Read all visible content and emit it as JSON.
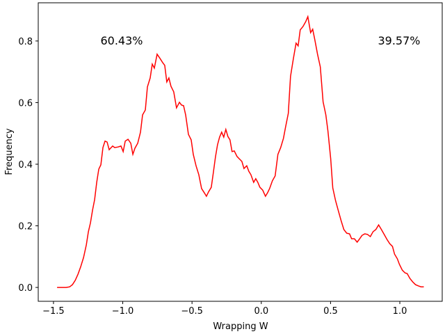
{
  "chart_data": {
    "type": "line",
    "xlabel": "Wrapping W",
    "ylabel": "Frequency",
    "annotations": [
      "60.43%",
      "39.57%"
    ],
    "xlim": [
      -1.61,
      1.306
    ],
    "ylim": [
      -0.045,
      0.924
    ],
    "xticks": [
      {
        "value": -1.5,
        "label": "−1.5"
      },
      {
        "value": -1.0,
        "label": "−1.0"
      },
      {
        "value": -0.5,
        "label": "−0.5"
      },
      {
        "value": 0,
        "label": "0.0"
      },
      0.5,
      {
        "value": 1.0,
        "label": "1.0"
      }
    ],
    "yticks": [
      {
        "value": 0,
        "label": "0.0"
      },
      0.2,
      0.4,
      0.6,
      0.8
    ],
    "color": "#ff0000",
    "x": [
      -1.474,
      -1.434,
      -1.409,
      -1.383,
      -1.363,
      -1.343,
      -1.323,
      -1.303,
      -1.283,
      -1.263,
      -1.248,
      -1.233,
      -1.218,
      -1.203,
      -1.188,
      -1.173,
      -1.158,
      -1.143,
      -1.128,
      -1.113,
      -1.098,
      -1.073,
      -1.058,
      -1.033,
      -1.013,
      -0.997,
      -0.982,
      -0.962,
      -0.942,
      -0.927,
      -0.912,
      -0.892,
      -0.872,
      -0.857,
      -0.837,
      -0.822,
      -0.802,
      -0.787,
      -0.772,
      -0.752,
      -0.732,
      -0.712,
      -0.697,
      -0.682,
      -0.667,
      -0.652,
      -0.632,
      -0.612,
      -0.591,
      -0.576,
      -0.561,
      -0.546,
      -0.526,
      -0.506,
      -0.491,
      -0.471,
      -0.451,
      -0.431,
      -0.411,
      -0.396,
      -0.381,
      -0.361,
      -0.346,
      -0.331,
      -0.316,
      -0.301,
      -0.286,
      -0.271,
      -0.256,
      -0.241,
      -0.226,
      -0.211,
      -0.195,
      -0.175,
      -0.16,
      -0.14,
      -0.125,
      -0.105,
      -0.09,
      -0.075,
      -0.055,
      -0.04,
      -0.025,
      -0.01,
      0.01,
      0.03,
      0.045,
      0.06,
      0.08,
      0.1,
      0.12,
      0.14,
      0.16,
      0.175,
      0.195,
      0.211,
      0.231,
      0.251,
      0.266,
      0.281,
      0.301,
      0.321,
      0.336,
      0.356,
      0.371,
      0.386,
      0.406,
      0.426,
      0.446,
      0.466,
      0.481,
      0.501,
      0.516,
      0.536,
      0.556,
      0.576,
      0.596,
      0.617,
      0.637,
      0.652,
      0.672,
      0.692,
      0.707,
      0.727,
      0.747,
      0.767,
      0.787,
      0.807,
      0.827,
      0.847,
      0.867,
      0.887,
      0.907,
      0.927,
      0.947,
      0.962,
      0.982,
      0.997,
      1.018,
      1.038,
      1.053,
      1.073,
      1.093,
      1.113,
      1.133,
      1.153,
      1.173
    ],
    "values": [
      0,
      0,
      0,
      0.002,
      0.009,
      0.023,
      0.043,
      0.068,
      0.097,
      0.138,
      0.181,
      0.21,
      0.251,
      0.285,
      0.341,
      0.384,
      0.398,
      0.454,
      0.475,
      0.472,
      0.447,
      0.459,
      0.454,
      0.456,
      0.459,
      0.441,
      0.475,
      0.481,
      0.468,
      0.432,
      0.452,
      0.468,
      0.504,
      0.56,
      0.576,
      0.651,
      0.68,
      0.725,
      0.712,
      0.757,
      0.744,
      0.73,
      0.721,
      0.667,
      0.68,
      0.653,
      0.635,
      0.583,
      0.601,
      0.592,
      0.59,
      0.56,
      0.497,
      0.479,
      0.432,
      0.395,
      0.366,
      0.321,
      0.307,
      0.296,
      0.31,
      0.325,
      0.373,
      0.423,
      0.463,
      0.488,
      0.504,
      0.488,
      0.513,
      0.49,
      0.479,
      0.441,
      0.443,
      0.425,
      0.418,
      0.409,
      0.386,
      0.395,
      0.377,
      0.366,
      0.341,
      0.353,
      0.341,
      0.325,
      0.316,
      0.296,
      0.307,
      0.321,
      0.346,
      0.362,
      0.432,
      0.454,
      0.484,
      0.52,
      0.565,
      0.685,
      0.741,
      0.793,
      0.784,
      0.836,
      0.847,
      0.863,
      0.879,
      0.827,
      0.838,
      0.805,
      0.757,
      0.716,
      0.603,
      0.56,
      0.508,
      0.418,
      0.323,
      0.282,
      0.249,
      0.217,
      0.188,
      0.176,
      0.174,
      0.158,
      0.158,
      0.147,
      0.156,
      0.169,
      0.174,
      0.172,
      0.165,
      0.181,
      0.188,
      0.203,
      0.188,
      0.172,
      0.156,
      0.142,
      0.133,
      0.108,
      0.093,
      0.075,
      0.056,
      0.047,
      0.045,
      0.029,
      0.018,
      0.009,
      0.005,
      0.002,
      0.002
    ]
  }
}
